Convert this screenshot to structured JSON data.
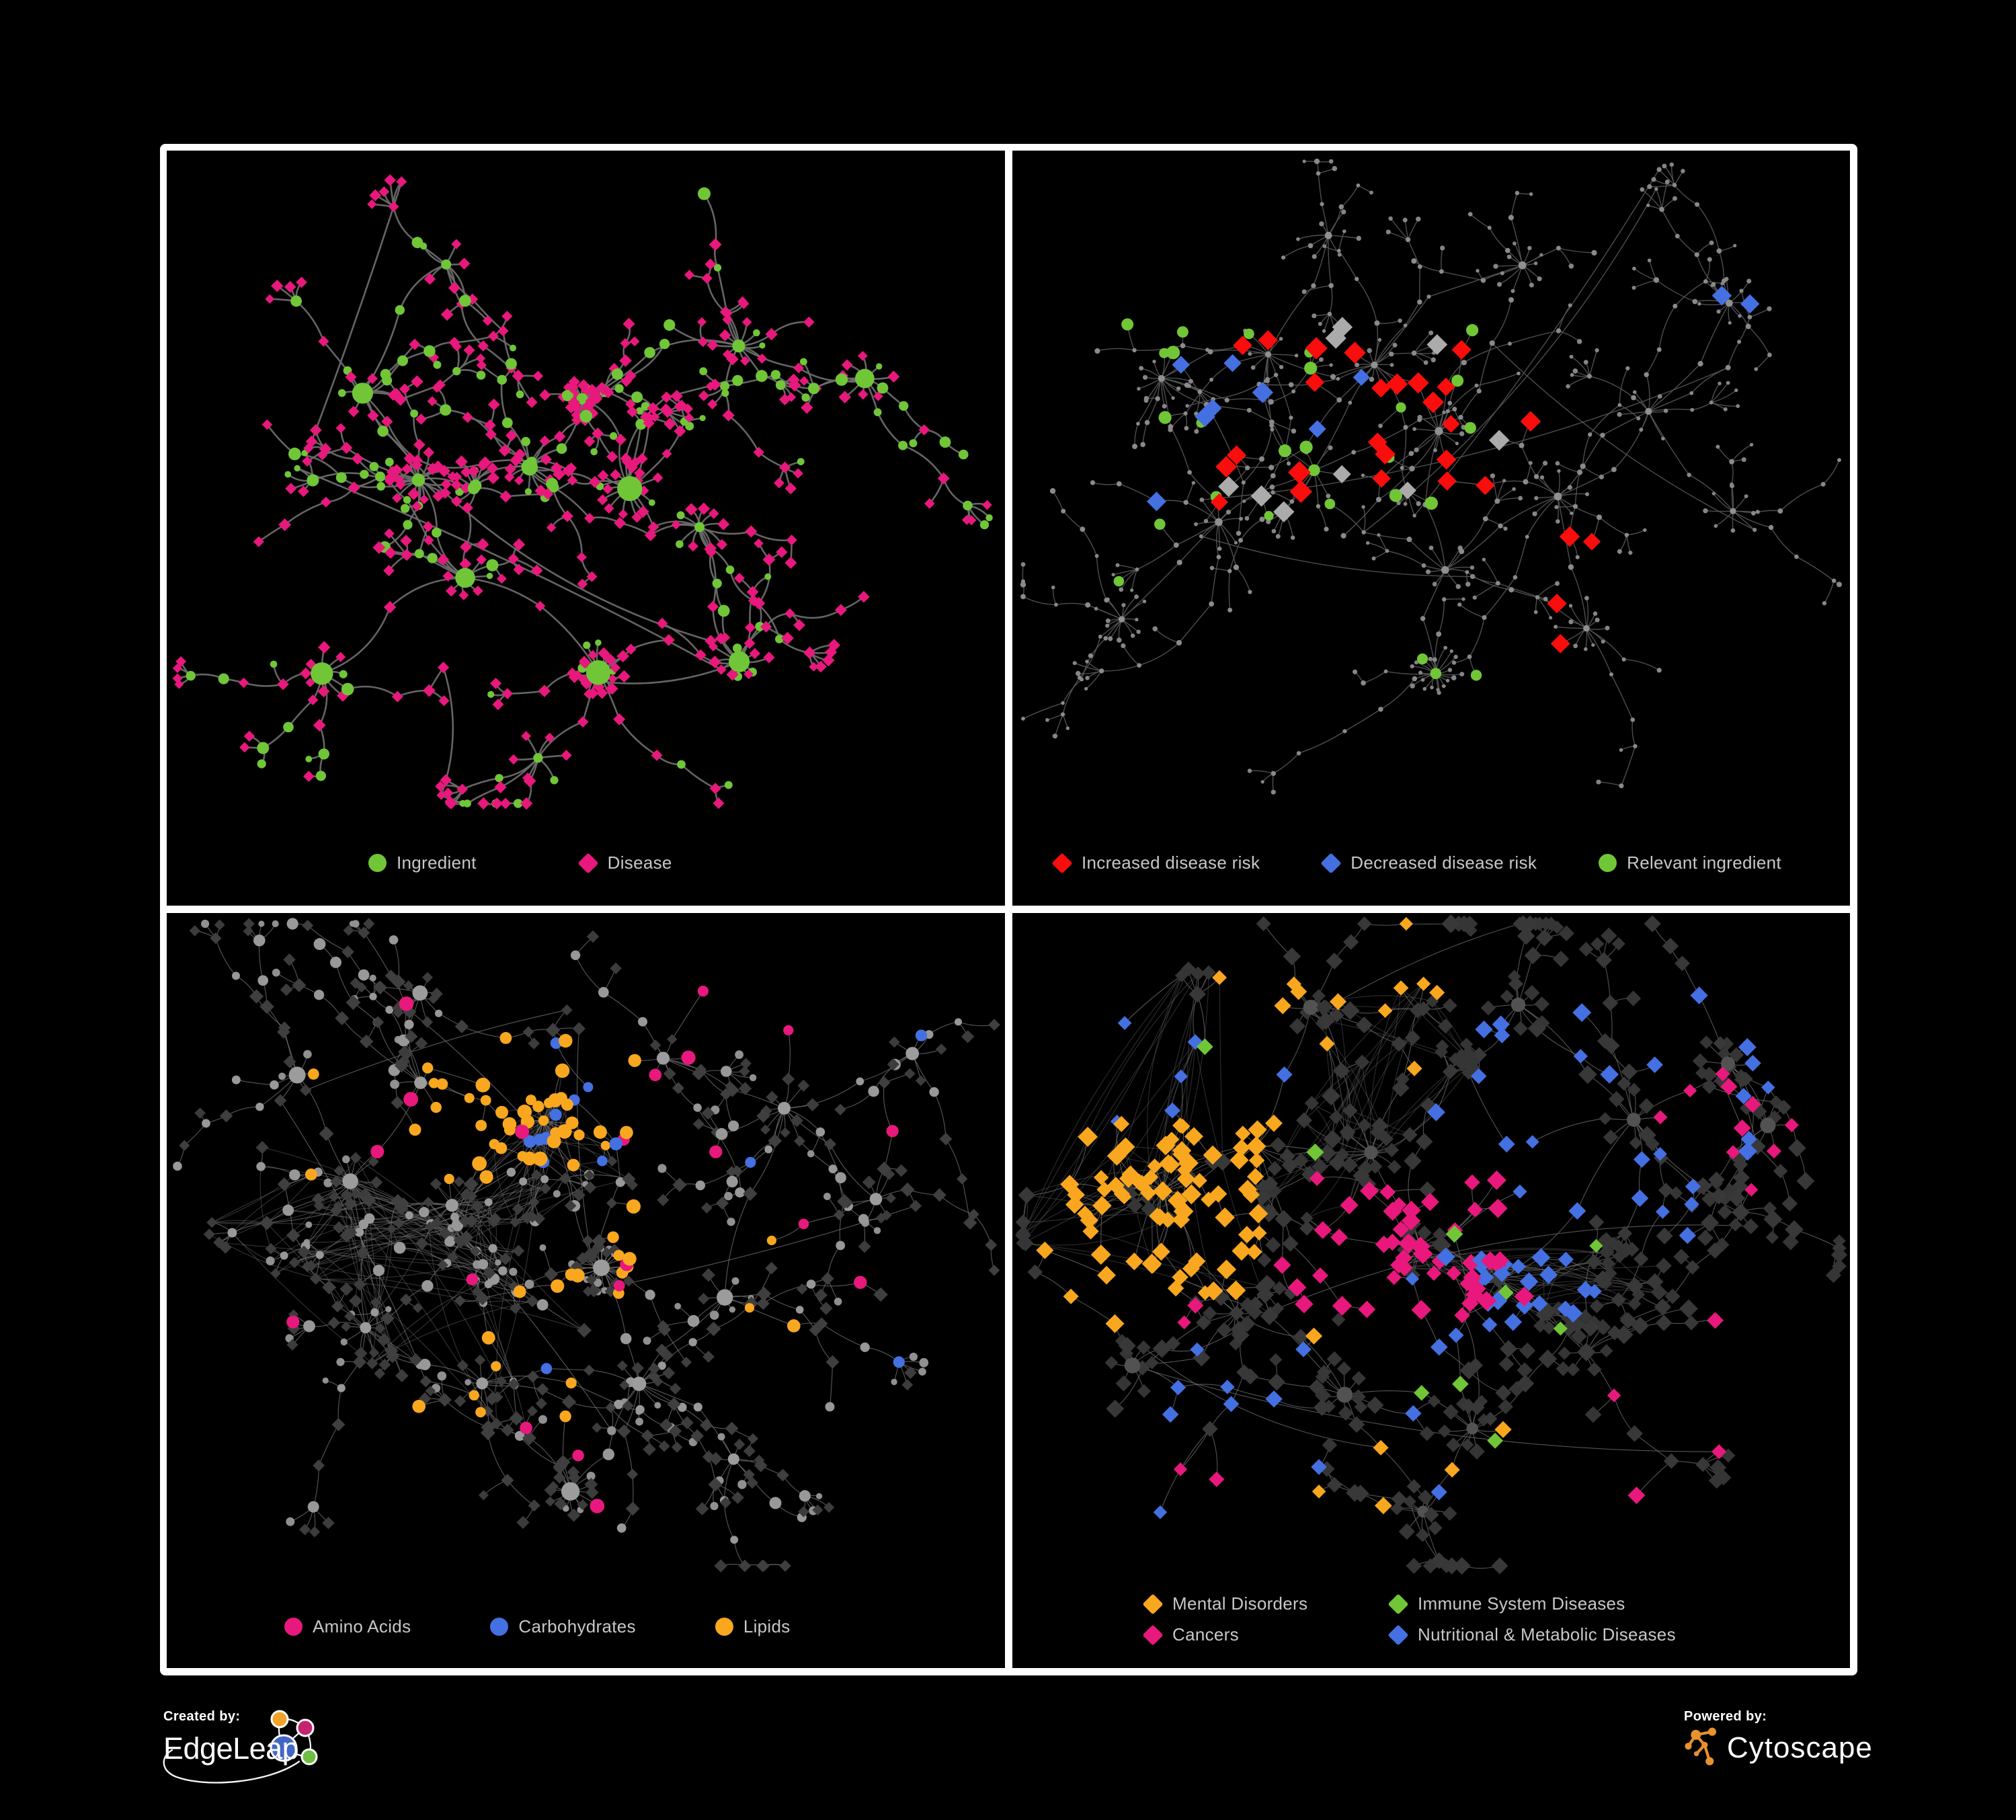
{
  "figure": {
    "background": "#000000",
    "frame_color": "#ffffff",
    "legend_text_color": "#C7C7C7"
  },
  "colors": {
    "green": "#71C637",
    "pink": "#E8187C",
    "red": "#FA0D0D",
    "blue": "#4470E2",
    "orange": "#F9A71F",
    "gray_node": "#9C9C9C",
    "gray_diamond": "#ABABAB",
    "dark_diamond": "#3A3A3A"
  },
  "branding": {
    "created_by_label": "Created by:",
    "edgeleap_name": "EdgeLeap",
    "powered_by_label": "Powered by:",
    "cytoscape_name": "Cytoscape",
    "edgeleap_orange": "#F0A32A",
    "edgeleap_pink": "#C4256E",
    "edgeleap_blue": "#4467C6",
    "edgeleap_green": "#6FBE44",
    "cytoscape_orange": "#E8912D"
  },
  "panels": [
    {
      "name": "ingredient-disease",
      "legend": {
        "items": [
          {
            "label": "Ingredient",
            "shape": "circle",
            "color": "#71C637"
          },
          {
            "label": "Disease",
            "shape": "diamond",
            "color": "#E8187C"
          }
        ]
      },
      "net": {
        "seed": 7,
        "edge": {
          "color": "#6E6E6E",
          "w": 2.6,
          "curve": 0.5,
          "op": 0.92
        },
        "classes": {
          "hub": [
            [
              0.7,
              "circle",
              "#71C637",
              11,
              19
            ],
            [
              0.3,
              "circle",
              "#71C637",
              7,
              11
            ]
          ],
          "chain": [
            [
              0.4,
              "circle",
              "#71C637",
              5.5,
              9.5
            ],
            [
              0.6,
              "diamond",
              "#E8187C",
              7.5,
              9.5
            ]
          ],
          "leaf": [
            [
              0.16,
              "circle",
              "#71C637",
              4.5,
              7
            ],
            [
              0.84,
              "diamond",
              "#E8187C",
              7,
              9.5
            ]
          ]
        },
        "clusters": [
          [
            0.3,
            0.5,
            7,
            16
          ],
          [
            0.42,
            0.46,
            6,
            12
          ],
          [
            0.49,
            0.36,
            5,
            20,
            0.45
          ],
          [
            0.56,
            0.5,
            5,
            14
          ],
          [
            0.35,
            0.64,
            5,
            8
          ],
          [
            0.52,
            0.8,
            3,
            24
          ],
          [
            0.22,
            0.34,
            5,
            6
          ],
          [
            0.33,
            0.15,
            4,
            5
          ],
          [
            0.7,
            0.28,
            6,
            10
          ],
          [
            0.85,
            0.33,
            4,
            8
          ],
          [
            0.64,
            0.57,
            4,
            10
          ],
          [
            0.7,
            0.78,
            4,
            12
          ],
          [
            0.16,
            0.8,
            4,
            8
          ],
          [
            0.45,
            0.92,
            3,
            6
          ]
        ],
        "cross": 5,
        "sprinkle": []
      }
    },
    {
      "name": "disease-risk",
      "legend": {
        "items": [
          {
            "label": "Increased disease risk",
            "shape": "diamond",
            "color": "#FA0D0D"
          },
          {
            "label": "Decreased disease risk",
            "shape": "diamond",
            "color": "#4470E2"
          },
          {
            "label": "Relevant ingredient",
            "shape": "circle",
            "color": "#71C637"
          }
        ]
      },
      "net": {
        "seed": 23,
        "edge": {
          "color": "#565656",
          "w": 1.4,
          "curve": 0.25,
          "op": 0.9
        },
        "classes": {
          "hub": [
            [
              1,
              "circle",
              "#909090",
              4.5,
              6.5
            ]
          ],
          "chain": [
            [
              1,
              "circle",
              "#8A8A8A",
              2.8,
              4.2
            ]
          ],
          "leaf": [
            [
              1,
              "circle",
              "#858585",
              2.6,
              3.8
            ]
          ]
        },
        "clusters": [
          [
            0.17,
            0.34,
            6,
            12
          ],
          [
            0.3,
            0.28,
            5,
            8
          ],
          [
            0.42,
            0.3,
            6,
            10
          ],
          [
            0.5,
            0.42,
            6,
            10
          ],
          [
            0.36,
            0.48,
            5,
            6
          ],
          [
            0.24,
            0.55,
            4,
            8
          ],
          [
            0.12,
            0.7,
            4,
            12
          ],
          [
            0.52,
            0.62,
            4,
            6
          ],
          [
            0.5,
            0.8,
            3,
            20
          ],
          [
            0.66,
            0.52,
            5,
            8
          ],
          [
            0.78,
            0.38,
            5,
            6
          ],
          [
            0.88,
            0.22,
            4,
            8
          ],
          [
            0.62,
            0.14,
            4,
            10
          ],
          [
            0.38,
            0.1,
            4,
            6
          ],
          [
            0.88,
            0.55,
            3,
            8
          ],
          [
            0.7,
            0.72,
            3,
            12
          ]
        ],
        "cross": 6,
        "sprinkle": [
          {
            "n": 9,
            "shape": "diamond",
            "color": "#ABABAB",
            "s": [
              13,
              16
            ],
            "r": [
              0.22,
              0.26,
              0.62,
              0.55
            ]
          },
          {
            "n": 24,
            "shape": "diamond",
            "color": "#FA0D0D",
            "s": [
              13,
              17
            ],
            "r": [
              0.22,
              0.24,
              0.6,
              0.52
            ]
          },
          {
            "n": 4,
            "shape": "diamond",
            "color": "#FA0D0D",
            "s": [
              13,
              16
            ],
            "r": [
              0.58,
              0.58,
              0.72,
              0.78
            ]
          },
          {
            "n": 6,
            "shape": "diamond",
            "color": "#4470E2",
            "s": [
              13,
              16
            ],
            "r": [
              0.14,
              0.28,
              0.3,
              0.5
            ]
          },
          {
            "n": 2,
            "shape": "diamond",
            "color": "#4470E2",
            "s": [
              14,
              15
            ],
            "r": [
              0.86,
              0.2,
              0.93,
              0.26
            ]
          },
          {
            "n": 2,
            "shape": "diamond",
            "color": "#4470E2",
            "s": [
              12,
              14
            ],
            "r": [
              0.3,
              0.3,
              0.45,
              0.45
            ]
          },
          {
            "n": 22,
            "shape": "circle",
            "color": "#71C637",
            "s": [
              7,
              10
            ],
            "r": [
              0.12,
              0.22,
              0.58,
              0.55
            ]
          },
          {
            "n": 3,
            "shape": "circle",
            "color": "#71C637",
            "s": [
              7,
              9
            ],
            "r": [
              0.48,
              0.74,
              0.6,
              0.88
            ]
          },
          {
            "n": 2,
            "shape": "circle",
            "color": "#71C637",
            "s": [
              7,
              9
            ],
            "r": [
              0.1,
              0.55,
              0.22,
              0.7
            ]
          }
        ]
      }
    },
    {
      "name": "nutrient-classes",
      "legend": {
        "items": [
          {
            "label": "Amino Acids",
            "shape": "circle",
            "color": "#E8187C"
          },
          {
            "label": "Carbohydrates",
            "shape": "circle",
            "color": "#4470E2"
          },
          {
            "label": "Lipids",
            "shape": "circle",
            "color": "#F9A71F"
          }
        ]
      },
      "net": {
        "seed": 57,
        "edge": {
          "color": "#7B7B7B",
          "w": 1.1,
          "curve": 0.3,
          "op": 0.72
        },
        "classes": {
          "hub": [
            [
              1,
              "circle",
              "#9C9C9C",
              8,
              14
            ]
          ],
          "chain": [
            [
              0.42,
              "circle",
              "#989898",
              5.5,
              9
            ],
            [
              0.58,
              "diamond",
              "#3F3F3F",
              8,
              11
            ]
          ],
          "leaf": [
            [
              0.3,
              "circle",
              "#909090",
              4.5,
              7
            ],
            [
              0.7,
              "diamond",
              "#3C3C3C",
              7.5,
              10
            ]
          ]
        },
        "clusters": [
          [
            0.2,
            0.4,
            7,
            10,
            1,
            1
          ],
          [
            0.33,
            0.42,
            7,
            8,
            1,
            1
          ],
          [
            0.44,
            0.3,
            6,
            14,
            0.85,
            1
          ],
          [
            0.3,
            0.24,
            5,
            6
          ],
          [
            0.52,
            0.52,
            4,
            34
          ],
          [
            0.22,
            0.62,
            5,
            10
          ],
          [
            0.38,
            0.7,
            4,
            8
          ],
          [
            0.56,
            0.7,
            4,
            8
          ],
          [
            0.68,
            0.58,
            4,
            6
          ],
          [
            0.75,
            0.28,
            5,
            8
          ],
          [
            0.6,
            0.2,
            4,
            6
          ],
          [
            0.3,
            0.1,
            4,
            5
          ],
          [
            0.13,
            0.22,
            4,
            6
          ],
          [
            0.48,
            0.88,
            3,
            16
          ],
          [
            0.68,
            0.84,
            3,
            6
          ],
          [
            0.86,
            0.42,
            3,
            6
          ],
          [
            0.9,
            0.2,
            3,
            5
          ]
        ],
        "cross": 6,
        "sprinkle": [
          {
            "n": 40,
            "shape": "circle",
            "color": "#F9A71F",
            "s": [
              7.5,
              11
            ],
            "r": [
              0.32,
              0.2,
              0.54,
              0.38
            ]
          },
          {
            "n": 9,
            "shape": "circle",
            "color": "#F9A71F",
            "s": [
              8,
              11
            ],
            "r": [
              0.46,
              0.46,
              0.58,
              0.58
            ]
          },
          {
            "n": 16,
            "shape": "circle",
            "color": "#F9A71F",
            "s": [
              7,
              10
            ],
            "r": [
              0.12,
              0.12,
              0.8,
              0.8
            ]
          },
          {
            "n": 10,
            "shape": "circle",
            "color": "#4470E2",
            "s": [
              7.5,
              10
            ],
            "r": [
              0.38,
              0.2,
              0.52,
              0.34
            ]
          },
          {
            "n": 4,
            "shape": "circle",
            "color": "#4470E2",
            "s": [
              7,
              9
            ],
            "r": [
              0.1,
              0.1,
              0.9,
              0.75
            ]
          },
          {
            "n": 20,
            "shape": "circle",
            "color": "#E8187C",
            "s": [
              7.5,
              11
            ],
            "r": [
              0.05,
              0.05,
              0.95,
              0.92
            ]
          }
        ]
      }
    },
    {
      "name": "disease-categories",
      "legend": {
        "items": [
          {
            "label": "Mental Disorders",
            "shape": "diamond",
            "color": "#F9A71F"
          },
          {
            "label": "Immune System Diseases",
            "shape": "diamond",
            "color": "#71C637"
          },
          {
            "label": "Cancers",
            "shape": "diamond",
            "color": "#E8187C"
          },
          {
            "label": "Nutritional & Metabolic Diseases",
            "shape": "diamond",
            "color": "#4470E2"
          }
        ]
      },
      "net": {
        "seed": 91,
        "edge": {
          "color": "#6C6C6C",
          "w": 1.1,
          "curve": 0.3,
          "op": 0.78
        },
        "classes": {
          "hub": [
            [
              0.6,
              "circle",
              "#525252",
              8,
              12
            ],
            [
              0.4,
              "diamond",
              "#3A3A3A",
              11,
              14
            ]
          ],
          "chain": [
            [
              1,
              "diamond",
              "#383838",
              10.5,
              14
            ]
          ],
          "leaf": [
            [
              1,
              "diamond",
              "#353535",
              9.5,
              12.5
            ]
          ]
        },
        "clusters": [
          [
            0.16,
            0.42,
            7,
            14,
            1,
            1
          ],
          [
            0.28,
            0.34,
            6,
            8
          ],
          [
            0.42,
            0.34,
            7,
            10,
            1,
            1
          ],
          [
            0.48,
            0.5,
            6,
            10
          ],
          [
            0.58,
            0.56,
            5,
            12,
            1,
            1
          ],
          [
            0.25,
            0.6,
            4,
            8
          ],
          [
            0.4,
            0.72,
            4,
            8
          ],
          [
            0.55,
            0.78,
            3,
            10
          ],
          [
            0.7,
            0.66,
            4,
            6
          ],
          [
            0.75,
            0.3,
            5,
            8
          ],
          [
            0.87,
            0.2,
            4,
            8
          ],
          [
            0.6,
            0.12,
            4,
            8
          ],
          [
            0.35,
            0.12,
            4,
            6
          ],
          [
            0.12,
            0.68,
            3,
            6
          ],
          [
            0.88,
            0.45,
            3,
            6
          ],
          [
            0.48,
            0.9,
            3,
            8
          ],
          [
            0.92,
            0.3,
            3,
            5
          ]
        ],
        "cross": 6,
        "sprinkle": [
          {
            "n": 80,
            "shape": "diamond",
            "color": "#F9A71F",
            "s": [
              11,
              15
            ],
            "r": [
              0.06,
              0.3,
              0.28,
              0.56
            ]
          },
          {
            "n": 12,
            "shape": "diamond",
            "color": "#F9A71F",
            "s": [
              10,
              13
            ],
            "r": [
              0.25,
              0.04,
              0.6,
              0.2
            ]
          },
          {
            "n": 6,
            "shape": "diamond",
            "color": "#F9A71F",
            "s": [
              10,
              13
            ],
            "r": [
              0.3,
              0.6,
              0.75,
              0.9
            ]
          },
          {
            "n": 48,
            "shape": "diamond",
            "color": "#E8187C",
            "s": [
              11,
              15
            ],
            "r": [
              0.34,
              0.38,
              0.62,
              0.6
            ]
          },
          {
            "n": 10,
            "shape": "diamond",
            "color": "#E8187C",
            "s": [
              10,
              13
            ],
            "r": [
              0.8,
              0.22,
              0.95,
              0.38
            ]
          },
          {
            "n": 8,
            "shape": "diamond",
            "color": "#E8187C",
            "s": [
              10,
              13
            ],
            "r": [
              0.1,
              0.55,
              0.9,
              0.95
            ]
          },
          {
            "n": 26,
            "shape": "diamond",
            "color": "#4470E2",
            "s": [
              11,
              14
            ],
            "r": [
              0.52,
              0.48,
              0.68,
              0.64
            ]
          },
          {
            "n": 26,
            "shape": "diamond",
            "color": "#4470E2",
            "s": [
              10,
              14
            ],
            "r": [
              0.55,
              0.06,
              0.95,
              0.5
            ]
          },
          {
            "n": 12,
            "shape": "diamond",
            "color": "#4470E2",
            "s": [
              10,
              13
            ],
            "r": [
              0.1,
              0.55,
              0.7,
              0.95
            ]
          },
          {
            "n": 6,
            "shape": "diamond",
            "color": "#4470E2",
            "s": [
              10,
              13
            ],
            "r": [
              0.08,
              0.08,
              0.35,
              0.3
            ]
          },
          {
            "n": 9,
            "shape": "diamond",
            "color": "#71C637",
            "s": [
              10,
              13
            ],
            "r": [
              0.15,
              0.15,
              0.75,
              0.85
            ]
          }
        ]
      }
    }
  ]
}
